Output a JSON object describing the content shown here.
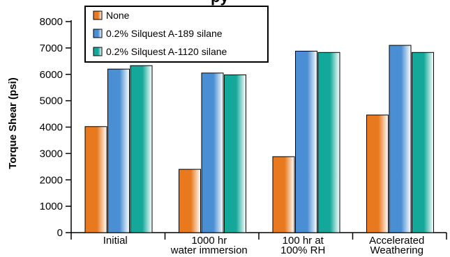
{
  "chart_data": {
    "type": "bar",
    "title": "",
    "xlabel": "",
    "ylabel": "Torque Shear (psi)",
    "ylim": [
      0,
      8000
    ],
    "yticks": [
      0,
      1000,
      2000,
      3000,
      4000,
      5000,
      6000,
      7000,
      8000
    ],
    "categories": [
      [
        "Initial"
      ],
      [
        "1000 hr",
        "water immersion"
      ],
      [
        "100 hr at",
        "100% RH"
      ],
      [
        "Accelerated",
        "Weathering"
      ]
    ],
    "series": [
      {
        "name": "None",
        "color": "#e8791e",
        "values": [
          4020,
          2400,
          2880,
          4460
        ]
      },
      {
        "name": "0.2% Silquest A-189 silane",
        "color": "#4a8fd4",
        "values": [
          6200,
          6050,
          6880,
          7100
        ]
      },
      {
        "name": "0.2% Silquest A-1120 silane",
        "color": "#14a89a",
        "values": [
          6330,
          5980,
          6830,
          6830
        ]
      }
    ],
    "legend_position": "top-left",
    "grid": false
  },
  "partial_title_text": "py"
}
